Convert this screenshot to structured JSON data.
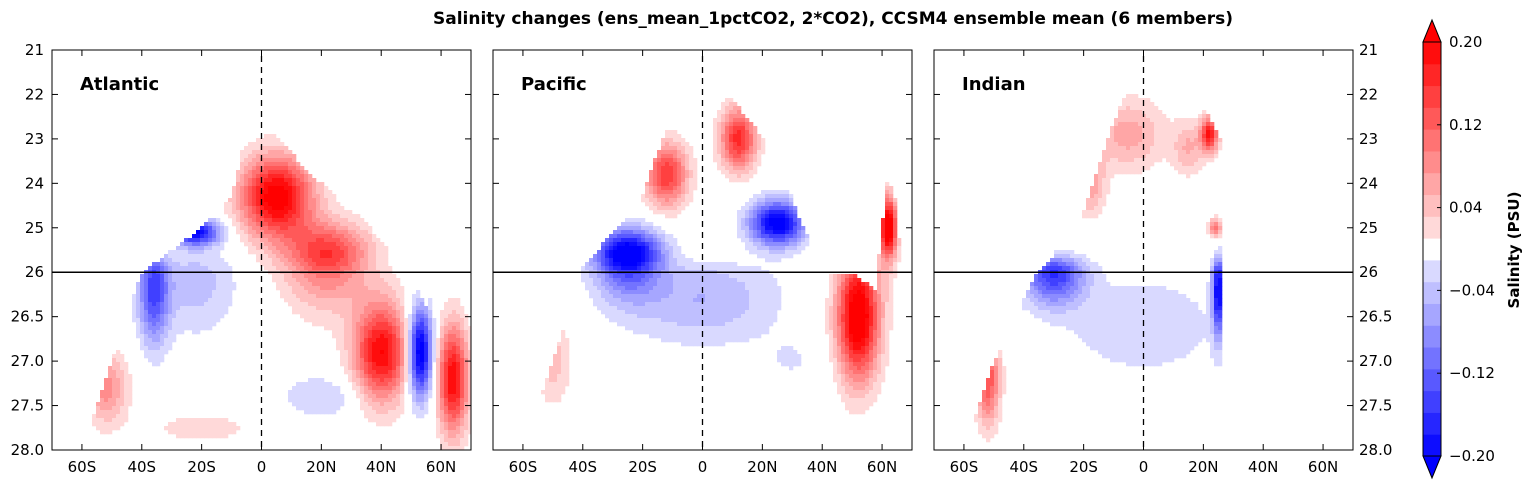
{
  "chart_data": {
    "type": "heatmap",
    "title": "Salinity changes (ens_mean_1pctCO2, 2*CO2), CCSM4 ensemble mean (6 members)",
    "colorbar": {
      "label": "Salinity (PSU)",
      "tick_labels": [
        "0.20",
        "0.12",
        "0.04",
        "−0.04",
        "−0.12",
        "−0.20"
      ],
      "tick_values": [
        0.2,
        0.12,
        0.04,
        -0.04,
        -0.12,
        -0.2
      ],
      "levels": [
        -0.2,
        -0.18,
        -0.16,
        -0.14,
        -0.12,
        -0.1,
        -0.08,
        -0.06,
        -0.04,
        -0.02,
        0.02,
        0.04,
        0.06,
        0.08,
        0.1,
        0.12,
        0.14,
        0.16,
        0.18,
        0.2
      ],
      "extend": "both",
      "colormap": "bwr",
      "colors": {
        "negative_max": "#0000ff",
        "zero": "#ffffff",
        "positive_max": "#ff0000"
      }
    },
    "x_tick_labels": [
      "60S",
      "40S",
      "20S",
      "0",
      "20N",
      "40N",
      "60N"
    ],
    "x_tick_values": [
      -60,
      -40,
      -20,
      0,
      20,
      40,
      60
    ],
    "xlim": [
      -70,
      70
    ],
    "y_tick_labels": [
      "21",
      "22",
      "23",
      "24",
      "25",
      "26",
      "26.5",
      "27.0",
      "27.5",
      "28.0"
    ],
    "y_tick_values": [
      21,
      22,
      23,
      24,
      25,
      26,
      26.5,
      27.0,
      27.5,
      28.0
    ],
    "ylim": [
      28.0,
      21
    ],
    "reference_line_y": 26,
    "equator_line_x": 0,
    "panels": [
      {
        "name": "Atlantic",
        "blobs": [
          {
            "lat": 5,
            "sigma": 24.3,
            "slat": 12,
            "ssig": 0.9,
            "amp": 0.22
          },
          {
            "lat": 22,
            "sigma": 25.6,
            "slat": 14,
            "ssig": 0.7,
            "amp": 0.16
          },
          {
            "lat": 40,
            "sigma": 26.9,
            "slat": 9,
            "ssig": 0.55,
            "amp": 0.2
          },
          {
            "lat": 64,
            "sigma": 27.2,
            "slat": 5,
            "ssig": 0.6,
            "amp": 0.2
          },
          {
            "lat": -22,
            "sigma": 25.1,
            "slat": 8,
            "ssig": 0.3,
            "amp": -0.2
          },
          {
            "lat": -36,
            "sigma": 26.2,
            "slat": 5,
            "ssig": 0.6,
            "amp": -0.14
          },
          {
            "lat": -22,
            "sigma": 26.1,
            "slat": 14,
            "ssig": 0.6,
            "amp": -0.05
          },
          {
            "lat": 53,
            "sigma": 26.9,
            "slat": 4,
            "ssig": 0.5,
            "amp": -0.24
          },
          {
            "lat": 20,
            "sigma": 27.4,
            "slat": 14,
            "ssig": 0.25,
            "amp": -0.04
          },
          {
            "lat": -52,
            "sigma": 27.3,
            "slat": 7,
            "ssig": 0.4,
            "amp": 0.09
          },
          {
            "lat": -20,
            "sigma": 27.75,
            "slat": 20,
            "ssig": 0.2,
            "amp": 0.03
          }
        ],
        "mask": [
          [
            -70,
            28.0
          ],
          [
            -60,
            28.0
          ],
          [
            -50,
            27.0
          ],
          [
            -40,
            26.0
          ],
          [
            -30,
            25.5
          ],
          [
            -20,
            25.0
          ],
          [
            -10,
            24.3
          ],
          [
            -5,
            22.8
          ],
          [
            5,
            22.9
          ],
          [
            15,
            23.7
          ],
          [
            25,
            24.3
          ],
          [
            35,
            24.9
          ],
          [
            45,
            25.7
          ],
          [
            50,
            26.0
          ],
          [
            55,
            26.4
          ],
          [
            62,
            25.7
          ],
          [
            66,
            26.2
          ],
          [
            70,
            24.8
          ]
        ]
      },
      {
        "name": "Pacific",
        "blobs": [
          {
            "lat": -25,
            "sigma": 25.6,
            "slat": 11,
            "ssig": 0.55,
            "amp": -0.24
          },
          {
            "lat": 25,
            "sigma": 24.9,
            "slat": 9,
            "ssig": 0.5,
            "amp": -0.22
          },
          {
            "lat": -12,
            "sigma": 23.8,
            "slat": 7,
            "ssig": 0.7,
            "amp": 0.16
          },
          {
            "lat": 12,
            "sigma": 23.0,
            "slat": 6,
            "ssig": 0.7,
            "amp": 0.17
          },
          {
            "lat": 52,
            "sigma": 26.5,
            "slat": 7,
            "ssig": 0.7,
            "amp": 0.24
          },
          {
            "lat": 62,
            "sigma": 25.0,
            "slat": 3,
            "ssig": 0.7,
            "amp": 0.24
          },
          {
            "lat": 0,
            "sigma": 26.3,
            "slat": 25,
            "ssig": 0.5,
            "amp": -0.06
          },
          {
            "lat": -50,
            "sigma": 27.0,
            "slat": 6,
            "ssig": 0.5,
            "amp": 0.05
          },
          {
            "lat": 30,
            "sigma": 27.0,
            "slat": 12,
            "ssig": 0.3,
            "amp": -0.02
          }
        ],
        "mask": [
          [
            -70,
            28.0
          ],
          [
            -60,
            28.0
          ],
          [
            -50,
            27.0
          ],
          [
            -40,
            25.9
          ],
          [
            -30,
            25.1
          ],
          [
            -20,
            24.3
          ],
          [
            -10,
            22.3
          ],
          [
            0,
            22.0
          ],
          [
            5,
            21.8
          ],
          [
            15,
            22.5
          ],
          [
            25,
            23.4
          ],
          [
            32,
            24.7
          ],
          [
            40,
            26.0
          ],
          [
            50,
            26.0
          ],
          [
            58,
            26.2
          ],
          [
            62,
            23.8
          ],
          [
            65,
            24.5
          ],
          [
            68,
            28.0
          ],
          [
            70,
            28.0
          ]
        ]
      },
      {
        "name": "Indian",
        "blobs": [
          {
            "lat": -18,
            "sigma": 24.0,
            "slat": 5,
            "ssig": 0.7,
            "amp": 0.08
          },
          {
            "lat": -5,
            "sigma": 22.9,
            "slat": 12,
            "ssig": 0.8,
            "amp": 0.07
          },
          {
            "lat": 15,
            "sigma": 23.2,
            "slat": 5,
            "ssig": 0.6,
            "amp": 0.06
          },
          {
            "lat": 22,
            "sigma": 22.9,
            "slat": 3,
            "ssig": 0.4,
            "amp": 0.18
          },
          {
            "lat": -30,
            "sigma": 26.0,
            "slat": 10,
            "ssig": 0.35,
            "amp": -0.16
          },
          {
            "lat": 25,
            "sigma": 26.2,
            "slat": 2,
            "ssig": 0.5,
            "amp": -0.2
          },
          {
            "lat": 0,
            "sigma": 26.6,
            "slat": 28,
            "ssig": 0.6,
            "amp": -0.035
          },
          {
            "lat": -52,
            "sigma": 27.2,
            "slat": 4,
            "ssig": 0.5,
            "amp": 0.14
          },
          {
            "lat": 24,
            "sigma": 25.0,
            "slat": 2,
            "ssig": 0.2,
            "amp": 0.12
          }
        ],
        "mask": [
          [
            -70,
            28.0
          ],
          [
            -60,
            28.0
          ],
          [
            -50,
            27.0
          ],
          [
            -40,
            26.3
          ],
          [
            -30,
            25.6
          ],
          [
            -20,
            24.6
          ],
          [
            -10,
            22.6
          ],
          [
            -5,
            21.9
          ],
          [
            0,
            21.7
          ],
          [
            10,
            21.6
          ],
          [
            15,
            21.6
          ],
          [
            20,
            22.2
          ],
          [
            26,
            23.0
          ],
          [
            26,
            28.0
          ],
          [
            70,
            28.0
          ]
        ]
      }
    ]
  }
}
